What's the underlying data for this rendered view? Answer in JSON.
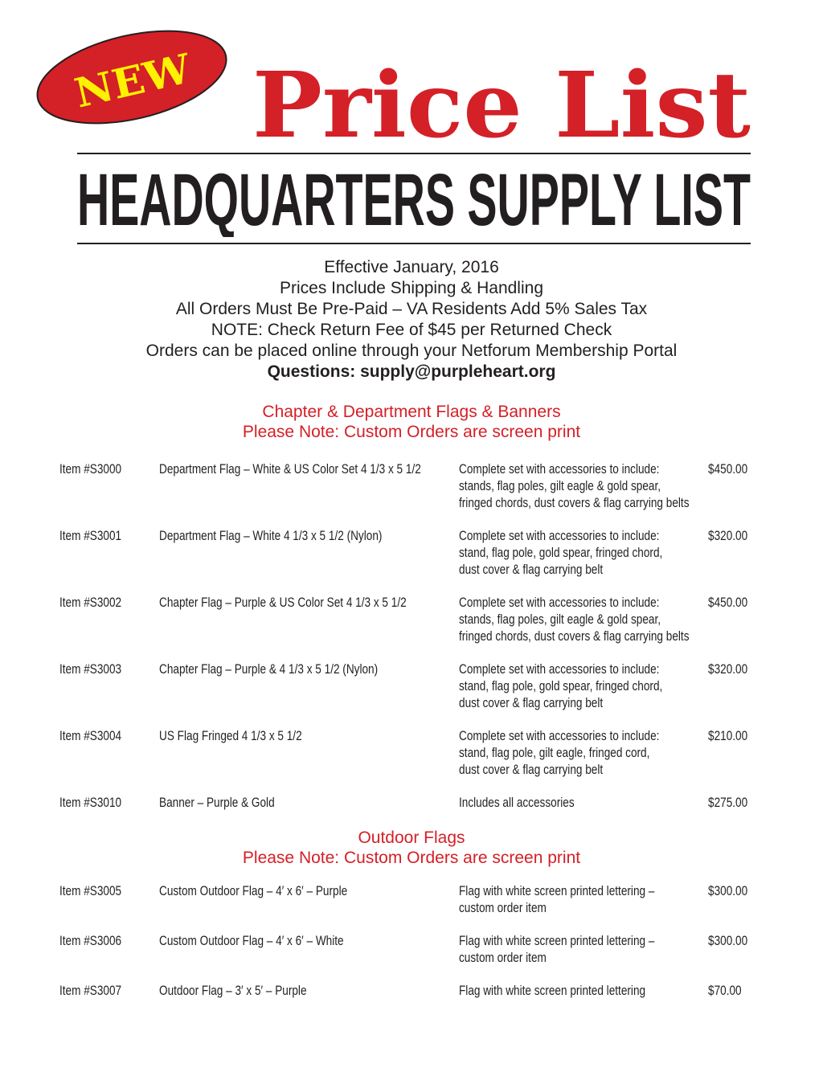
{
  "header": {
    "badge": "NEW",
    "title": "Price List",
    "subtitle": "HEADQUARTERS SUPPLY LIST",
    "colors": {
      "red": "#d42027",
      "yellow": "#fff200",
      "text": "#231f20"
    }
  },
  "info": {
    "lines": [
      "Effective January, 2016",
      "Prices Include Shipping & Handling",
      "All Orders Must Be Pre-Paid – VA Residents Add 5% Sales Tax",
      "NOTE: Check Return Fee of $45 per Returned Check",
      "Orders can be placed online through your Netforum Membership Portal"
    ],
    "questions": "Questions: supply@purpleheart.org"
  },
  "sections": [
    {
      "title": "Chapter & Department Flags & Banners",
      "note": "Please Note: Custom Orders are screen print",
      "rows": [
        {
          "item": "Item #S3000",
          "desc": "Department Flag – White & US Color Set 4 1/3 x 5 1/2",
          "details": [
            "Complete set with accessories to include:",
            "stands, flag poles, gilt eagle & gold spear,",
            "fringed chords, dust covers & flag carrying belts"
          ],
          "price": "$450.00"
        },
        {
          "item": "Item #S3001",
          "desc": "Department Flag – White 4 1/3 x 5 1/2 (Nylon)",
          "details": [
            "Complete set with accessories to include:",
            "stand, flag pole, gold spear, fringed chord,",
            "dust cover & flag carrying belt"
          ],
          "price": "$320.00"
        },
        {
          "item": "Item #S3002",
          "desc": "Chapter Flag – Purple & US Color Set 4 1/3 x 5 1/2",
          "details": [
            "Complete set with accessories to include:",
            "stands, flag poles, gilt eagle & gold spear,",
            "fringed chords, dust covers & flag carrying belts"
          ],
          "price": "$450.00"
        },
        {
          "item": "Item #S3003",
          "desc": "Chapter Flag – Purple & 4 1/3 x 5 1/2 (Nylon)",
          "details": [
            "Complete set with accessories to include:",
            "stand, flag pole, gold spear, fringed chord,",
            "dust cover & flag carrying belt"
          ],
          "price": "$320.00"
        },
        {
          "item": "Item #S3004",
          "desc": "US Flag Fringed 4 1/3 x 5 1/2",
          "details": [
            "Complete set with accessories to include:",
            "stand, flag pole, gilt eagle, fringed cord,",
            "dust cover & flag carrying belt"
          ],
          "price": "$210.00"
        },
        {
          "item": "Item #S3010",
          "desc": "Banner – Purple & Gold",
          "details": [
            "Includes all accessories"
          ],
          "price": "$275.00"
        }
      ]
    },
    {
      "title": "Outdoor Flags",
      "note": "Please Note: Custom Orders are screen print",
      "rows": [
        {
          "item": "Item #S3005",
          "desc": "Custom Outdoor Flag – 4′ x 6′ – Purple",
          "details": [
            "Flag with white screen printed lettering –",
            "custom order item"
          ],
          "price": "$300.00"
        },
        {
          "item": "Item #S3006",
          "desc": "Custom Outdoor Flag – 4′ x 6′ – White",
          "details": [
            "Flag with white screen printed lettering –",
            "custom order item"
          ],
          "price": "$300.00"
        },
        {
          "item": "Item #S3007",
          "desc": "Outdoor Flag – 3′ x 5′ – Purple",
          "details": [
            "Flag with white screen printed lettering"
          ],
          "price": "$70.00"
        }
      ]
    }
  ]
}
